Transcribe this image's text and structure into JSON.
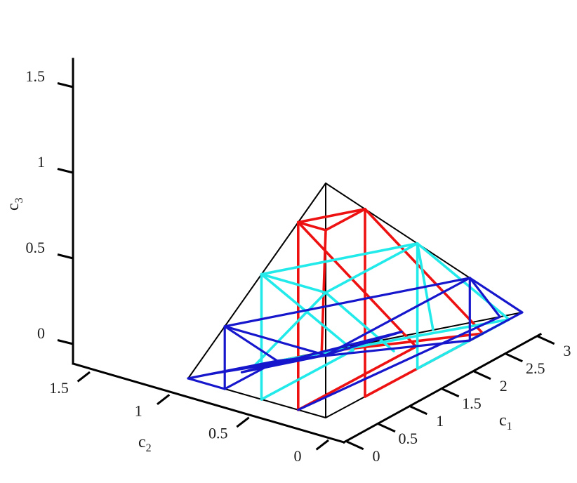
{
  "chart_data": {
    "type": "wireframe-3d",
    "x_axis": {
      "symbol": "c",
      "subscript": "1",
      "ticks": [
        0,
        0.5,
        1,
        1.5,
        2,
        2.5,
        3
      ],
      "tick_labels": [
        "0",
        "0.5",
        "1",
        "1.5",
        "2",
        "2.5",
        "3"
      ],
      "range": [
        0,
        3
      ]
    },
    "y_axis": {
      "symbol": "c",
      "subscript": "2",
      "ticks": [
        0,
        0.5,
        1,
        1.5
      ],
      "tick_labels": [
        "0",
        "0.5",
        "1",
        "1.5"
      ],
      "range": [
        0,
        1.5
      ]
    },
    "z_axis": {
      "symbol": "c",
      "subscript": "3",
      "ticks": [
        0,
        0.5,
        1,
        1.5
      ],
      "tick_labels": [
        "0",
        "0.5",
        "1",
        "1.5"
      ],
      "range": [
        0,
        1.5
      ]
    },
    "grid": false,
    "colors": {
      "outer": "#000000",
      "red": "#ee1111",
      "cyan": "#22eaea",
      "blue": "#1616cc"
    },
    "series": [
      {
        "color_key": "outer",
        "segments": [
          [
            [
              0,
              0,
              0
            ],
            [
              3,
              0,
              0
            ]
          ],
          [
            [
              0,
              0,
              0
            ],
            [
              0,
              1.5,
              0
            ]
          ],
          [
            [
              0,
              0,
              0
            ],
            [
              0,
              0,
              1.5
            ]
          ],
          [
            [
              3,
              0,
              0
            ],
            [
              0,
              1.5,
              0
            ]
          ],
          [
            [
              3,
              0,
              0
            ],
            [
              0,
              0,
              1.5
            ]
          ],
          [
            [
              0,
              1.5,
              0
            ],
            [
              0,
              0,
              1.5
            ]
          ]
        ]
      },
      {
        "color_key": "red",
        "segments": [
          [
            [
              0,
              0,
              1.2
            ],
            [
              0.6,
              0,
              1.2
            ]
          ],
          [
            [
              0,
              0,
              1.2
            ],
            [
              0,
              0.3,
              1.2
            ]
          ],
          [
            [
              0.6,
              0,
              1.2
            ],
            [
              0,
              0.3,
              1.2
            ]
          ],
          [
            [
              0,
              0.3,
              1.2
            ],
            [
              0,
              0.3,
              0
            ]
          ],
          [
            [
              0.6,
              0,
              1.2
            ],
            [
              0.6,
              0,
              0
            ]
          ],
          [
            [
              0,
              0,
              1.2
            ],
            [
              1.2,
              0.9,
              0
            ]
          ],
          [
            [
              0.6,
              0,
              1.2
            ],
            [
              2.4,
              0,
              0
            ]
          ],
          [
            [
              0,
              0.3,
              1.2
            ],
            [
              1.8,
              0.3,
              0
            ]
          ],
          [
            [
              1.2,
              0.9,
              0
            ],
            [
              2.4,
              0,
              0
            ]
          ],
          [
            [
              0,
              0.3,
              0
            ],
            [
              1.8,
              0.3,
              0
            ]
          ],
          [
            [
              0.6,
              0,
              0
            ],
            [
              2.4,
              0,
              0
            ]
          ]
        ]
      },
      {
        "color_key": "cyan",
        "segments": [
          [
            [
              0,
              0,
              0.8
            ],
            [
              1.4,
              0,
              0.8
            ]
          ],
          [
            [
              0,
              0,
              0.8
            ],
            [
              0,
              0.7,
              0.8
            ]
          ],
          [
            [
              1.4,
              0,
              0.8
            ],
            [
              0,
              0.7,
              0.8
            ]
          ],
          [
            [
              1.4,
              0,
              0.8
            ],
            [
              1.4,
              0,
              0
            ]
          ],
          [
            [
              0,
              0.7,
              0.8
            ],
            [
              0,
              0.7,
              0
            ]
          ],
          [
            [
              0,
              0,
              0.8
            ],
            [
              0.6,
              1.2,
              0
            ]
          ],
          [
            [
              0,
              0,
              0.8
            ],
            [
              1.6,
              0.4,
              0
            ]
          ],
          [
            [
              0,
              0.7,
              0.8
            ],
            [
              1.4,
              0.7,
              0
            ]
          ],
          [
            [
              1.4,
              0,
              0.8
            ],
            [
              2.8,
              0,
              0
            ]
          ],
          [
            [
              1.4,
              0,
              0.8
            ],
            [
              2.2,
              0.4,
              0
            ]
          ],
          [
            [
              0.6,
              1.2,
              0
            ],
            [
              2.8,
              0,
              0
            ]
          ],
          [
            [
              0,
              0.7,
              0
            ],
            [
              1.4,
              0.7,
              0
            ]
          ],
          [
            [
              1.4,
              0,
              0
            ],
            [
              2.8,
              0,
              0
            ]
          ]
        ]
      },
      {
        "color_key": "blue",
        "segments": [
          [
            [
              0,
              0,
              0.4
            ],
            [
              2.2,
              0,
              0.4
            ]
          ],
          [
            [
              0,
              0,
              0.4
            ],
            [
              0,
              1.1,
              0.4
            ]
          ],
          [
            [
              2.2,
              0,
              0.4
            ],
            [
              0,
              1.1,
              0.4
            ]
          ],
          [
            [
              2.2,
              0,
              0.4
            ],
            [
              2.2,
              0,
              0
            ]
          ],
          [
            [
              0,
              1.1,
              0.4
            ],
            [
              0,
              1.1,
              0
            ]
          ],
          [
            [
              0,
              0,
              0.4
            ],
            [
              0.2,
              1.4,
              0
            ]
          ],
          [
            [
              0,
              0,
              0.4
            ],
            [
              0.4,
              1.2,
              0
            ]
          ],
          [
            [
              0,
              0,
              0.4
            ],
            [
              2.0,
              0.6,
              0
            ]
          ],
          [
            [
              2.2,
              0,
              0.4
            ],
            [
              3.0,
              0,
              0
            ]
          ],
          [
            [
              2.2,
              0,
              0.4
            ],
            [
              2.8,
              0.1,
              0
            ]
          ],
          [
            [
              0,
              1.1,
              0.4
            ],
            [
              0.8,
              1.1,
              0
            ]
          ],
          [
            [
              0,
              1.1,
              0
            ],
            [
              0.8,
              1.1,
              0
            ]
          ],
          [
            [
              0,
              1.1,
              0
            ],
            [
              0,
              1.5,
              0
            ]
          ],
          [
            [
              0,
              1.5,
              0
            ],
            [
              0.8,
              1.1,
              0
            ]
          ],
          [
            [
              0.8,
              1.1,
              0
            ],
            [
              2.2,
              0,
              0
            ]
          ],
          [
            [
              0,
              0.3,
              0
            ],
            [
              2.8,
              0.1,
              0
            ]
          ],
          [
            [
              0.4,
              1.2,
              0
            ],
            [
              2.0,
              0.6,
              0
            ]
          ],
          [
            [
              2.2,
              0,
              0
            ],
            [
              3.0,
              0,
              0
            ]
          ]
        ]
      }
    ]
  }
}
